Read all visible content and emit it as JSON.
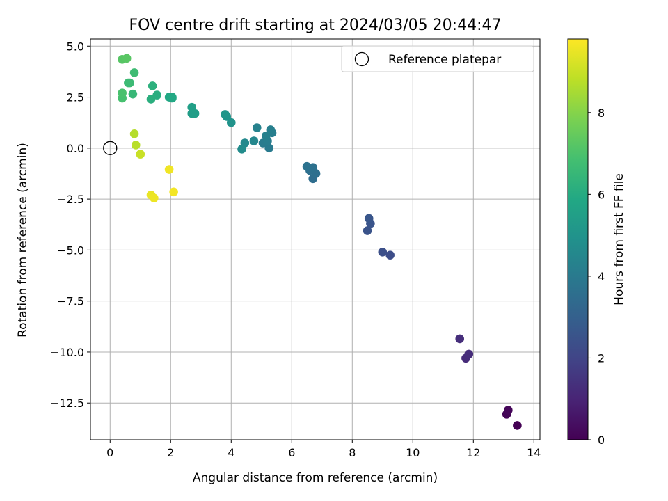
{
  "chart_data": {
    "type": "scatter",
    "title": "FOV centre drift starting at 2024/03/05 20:44:47",
    "xlabel": "Angular distance from reference (arcmin)",
    "ylabel": "Rotation from reference (arcmin)",
    "xlim": [
      -0.65,
      14.2
    ],
    "ylim": [
      -14.3,
      5.35
    ],
    "xticks": [
      0,
      2,
      4,
      6,
      8,
      10,
      12,
      14
    ],
    "xtick_labels": [
      "0",
      "2",
      "4",
      "6",
      "8",
      "10",
      "12",
      "14"
    ],
    "yticks": [
      5.0,
      2.5,
      0.0,
      -2.5,
      -5.0,
      -7.5,
      -10.0,
      -12.5
    ],
    "ytick_labels": [
      "5.0",
      "2.5",
      "0.0",
      "−2.5",
      "−5.0",
      "−7.5",
      "−10.0",
      "−12.5"
    ],
    "grid": true,
    "colormap": "viridis",
    "colorbar": {
      "label": "Hours from first FF file",
      "range": [
        0,
        9.8
      ],
      "ticks": [
        0,
        2,
        4,
        6,
        8
      ],
      "tick_labels": [
        "0",
        "2",
        "4",
        "6",
        "8"
      ]
    },
    "legend": {
      "position": "top-right",
      "entries": [
        {
          "label": "Reference platepar",
          "marker": "open-circle",
          "color": "#000000"
        }
      ]
    },
    "reference_point": {
      "x": 0,
      "y": 0
    },
    "points": [
      {
        "x": 13.45,
        "y": -13.6,
        "h": 0.0
      },
      {
        "x": 13.1,
        "y": -13.05,
        "h": 0.1
      },
      {
        "x": 13.15,
        "y": -12.85,
        "h": 0.15
      },
      {
        "x": 11.75,
        "y": -10.3,
        "h": 1.2
      },
      {
        "x": 11.85,
        "y": -10.1,
        "h": 1.25
      },
      {
        "x": 11.55,
        "y": -9.35,
        "h": 1.3
      },
      {
        "x": 9.25,
        "y": -5.25,
        "h": 2.3
      },
      {
        "x": 9.0,
        "y": -5.1,
        "h": 2.35
      },
      {
        "x": 8.5,
        "y": -4.05,
        "h": 2.5
      },
      {
        "x": 8.6,
        "y": -3.7,
        "h": 2.55
      },
      {
        "x": 8.55,
        "y": -3.45,
        "h": 2.6
      },
      {
        "x": 6.7,
        "y": -1.5,
        "h": 3.5
      },
      {
        "x": 6.8,
        "y": -1.25,
        "h": 3.55
      },
      {
        "x": 6.6,
        "y": -1.1,
        "h": 3.6
      },
      {
        "x": 6.7,
        "y": -0.95,
        "h": 3.65
      },
      {
        "x": 6.5,
        "y": -0.9,
        "h": 3.7
      },
      {
        "x": 5.25,
        "y": 0.0,
        "h": 4.0
      },
      {
        "x": 5.05,
        "y": 0.25,
        "h": 4.05
      },
      {
        "x": 5.2,
        "y": 0.35,
        "h": 4.1
      },
      {
        "x": 5.35,
        "y": 0.75,
        "h": 4.15
      },
      {
        "x": 5.3,
        "y": 0.9,
        "h": 4.2
      },
      {
        "x": 5.15,
        "y": 0.6,
        "h": 4.25
      },
      {
        "x": 4.85,
        "y": 1.0,
        "h": 4.3
      },
      {
        "x": 4.75,
        "y": 0.35,
        "h": 4.5
      },
      {
        "x": 4.45,
        "y": 0.25,
        "h": 4.6
      },
      {
        "x": 4.35,
        "y": -0.05,
        "h": 4.7
      },
      {
        "x": 4.0,
        "y": 1.25,
        "h": 5.0
      },
      {
        "x": 3.85,
        "y": 1.55,
        "h": 5.05
      },
      {
        "x": 3.8,
        "y": 1.65,
        "h": 5.1
      },
      {
        "x": 2.7,
        "y": 1.7,
        "h": 5.4
      },
      {
        "x": 2.8,
        "y": 1.7,
        "h": 5.45
      },
      {
        "x": 2.7,
        "y": 2.0,
        "h": 5.5
      },
      {
        "x": 2.05,
        "y": 2.45,
        "h": 5.8
      },
      {
        "x": 1.95,
        "y": 2.5,
        "h": 5.85
      },
      {
        "x": 2.05,
        "y": 2.5,
        "h": 5.9
      },
      {
        "x": 1.55,
        "y": 2.6,
        "h": 6.1
      },
      {
        "x": 1.35,
        "y": 2.4,
        "h": 6.15
      },
      {
        "x": 1.4,
        "y": 3.05,
        "h": 6.2
      },
      {
        "x": 0.75,
        "y": 2.65,
        "h": 6.5
      },
      {
        "x": 0.65,
        "y": 3.2,
        "h": 6.6
      },
      {
        "x": 0.6,
        "y": 3.2,
        "h": 6.65
      },
      {
        "x": 0.8,
        "y": 3.7,
        "h": 6.7
      },
      {
        "x": 0.4,
        "y": 2.45,
        "h": 6.9
      },
      {
        "x": 0.4,
        "y": 2.7,
        "h": 6.95
      },
      {
        "x": 0.4,
        "y": 4.35,
        "h": 7.2
      },
      {
        "x": 0.55,
        "y": 4.4,
        "h": 7.25
      },
      {
        "x": 0.8,
        "y": 0.7,
        "h": 8.7
      },
      {
        "x": 0.85,
        "y": 0.15,
        "h": 8.75
      },
      {
        "x": 1.0,
        "y": -0.3,
        "h": 9.0
      },
      {
        "x": 1.35,
        "y": -2.3,
        "h": 9.5
      },
      {
        "x": 1.45,
        "y": -2.45,
        "h": 9.55
      },
      {
        "x": 1.95,
        "y": -1.05,
        "h": 9.6
      },
      {
        "x": 2.1,
        "y": -2.15,
        "h": 9.65
      }
    ]
  }
}
